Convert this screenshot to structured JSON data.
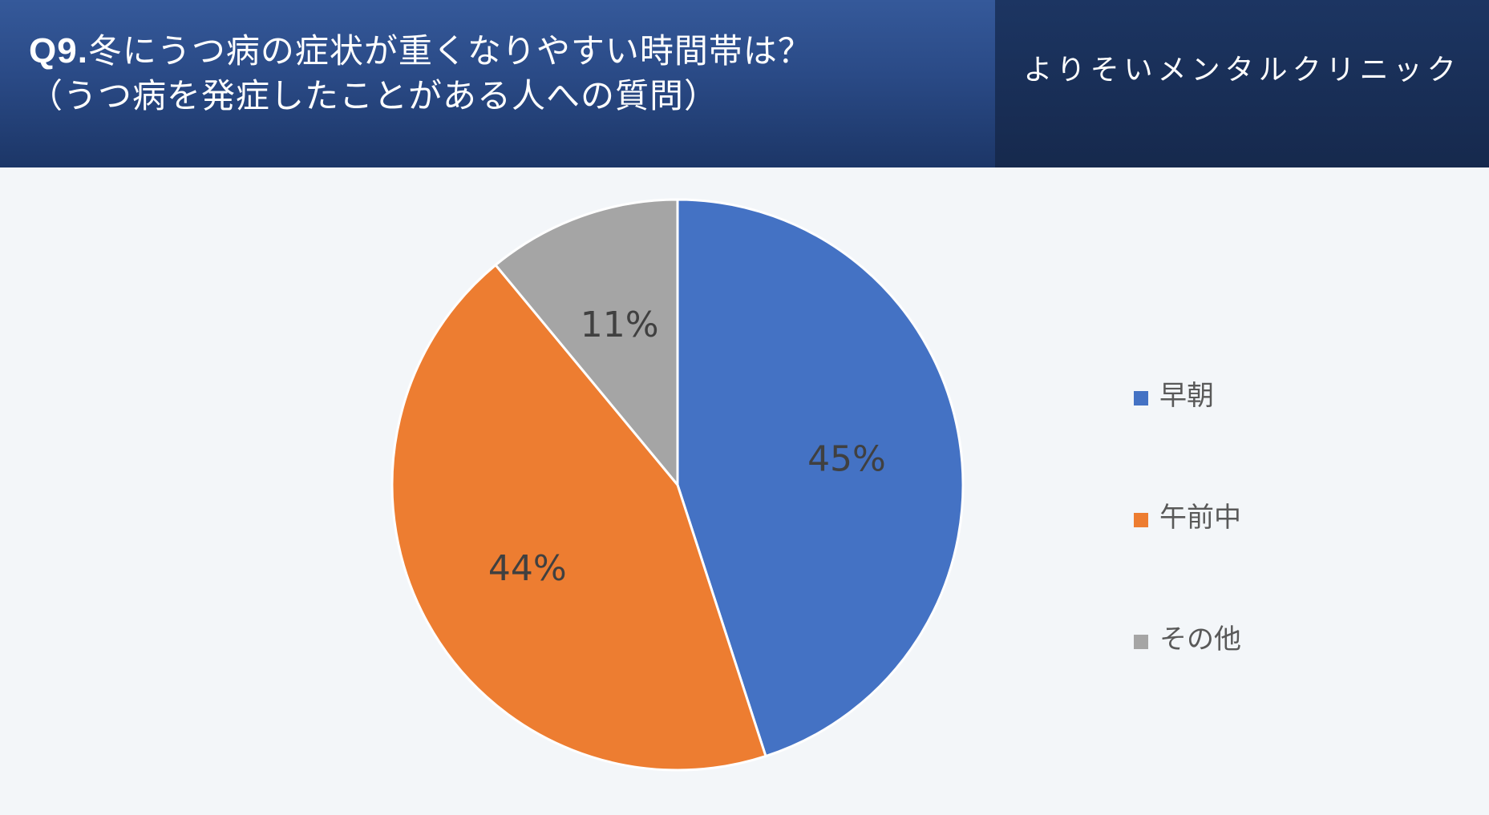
{
  "header": {
    "qnum": "Q9.",
    "title_line1": "冬にうつ病の症状が重くなりやすい時間帯は？",
    "title_line2": "（うつ病を発症したことがある人への質問）",
    "brand": "よりそいメンタルクリニック"
  },
  "chart_data": {
    "type": "pie",
    "title": "Q9.冬にうつ病の症状が重くなりやすい時間帯は？（うつ病を発症したことがある人への質問）",
    "categories": [
      "早朝",
      "午前中",
      "その他"
    ],
    "values": [
      45,
      44,
      11
    ],
    "labels": [
      "45%",
      "44%",
      "11%"
    ],
    "colors": [
      "#4472c4",
      "#ed7d31",
      "#a5a5a5"
    ],
    "legend_position": "right",
    "start_angle": "12 o'clock, clockwise"
  }
}
